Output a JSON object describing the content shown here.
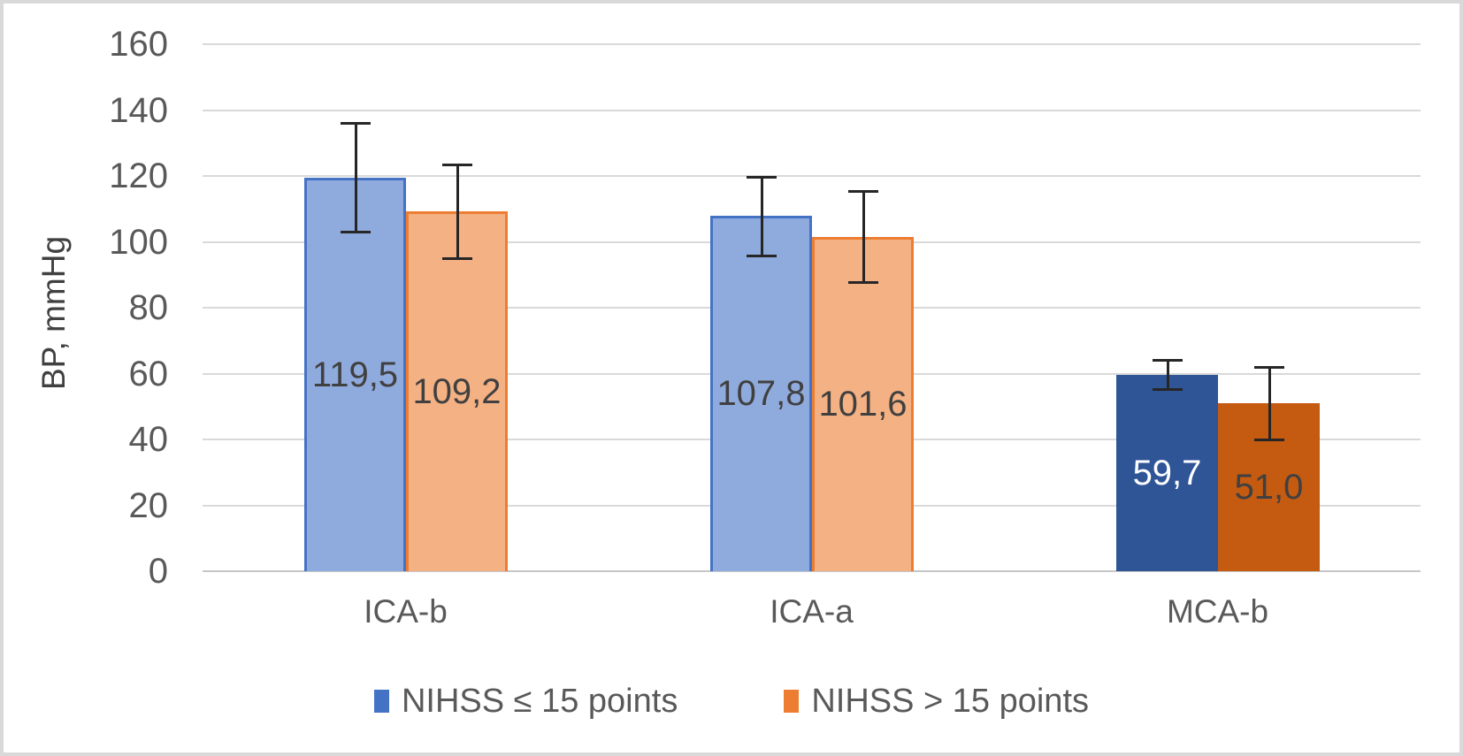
{
  "chart_data": {
    "type": "bar",
    "title": "",
    "ylabel": "BP, mmHg",
    "xlabel": "",
    "categories": [
      "ICA-b",
      "ICA-a",
      "MCA-b"
    ],
    "y_axis": {
      "min": 0,
      "max": 160,
      "step": 20,
      "tick_labels": [
        "0",
        "20",
        "40",
        "60",
        "80",
        "100",
        "120",
        "140",
        "160"
      ]
    },
    "series": [
      {
        "name": "NIHSS ≤ 15 points",
        "values": [
          119.5,
          107.8,
          59.7
        ],
        "value_labels": [
          "119,5",
          "107,8",
          "59,7"
        ],
        "errors": [
          16.5,
          12.0,
          4.5
        ],
        "fills": [
          "#8FAADC",
          "#8FAADC",
          "#2F5597"
        ],
        "borders": [
          "#4472C4",
          "#4472C4",
          "#2F5597"
        ],
        "label_colors": [
          "#404040",
          "#404040",
          "#FFFFFF"
        ],
        "legend_color": "#4472C4"
      },
      {
        "name": "NIHSS > 15 points",
        "values": [
          109.2,
          101.6,
          51.0
        ],
        "value_labels": [
          "109,2",
          "101,6",
          "51,0"
        ],
        "errors": [
          14.2,
          13.9,
          11.0
        ],
        "fills": [
          "#F4B183",
          "#F4B183",
          "#C55A11"
        ],
        "borders": [
          "#ED7D31",
          "#ED7D31",
          "#C55A11"
        ],
        "label_colors": [
          "#404040",
          "#404040",
          "#404040"
        ],
        "legend_color": "#ED7D31"
      }
    ],
    "grid": true,
    "legend_position": "bottom",
    "error_bars": true,
    "colors": {
      "gridline": "#D9D9D9",
      "axis_line": "#C6C6C6",
      "tick_text": "#595959",
      "category_text": "#595959",
      "axis_title_text": "#404040",
      "legend_text": "#595959",
      "error_bar": "#262626",
      "frame": "#D9D9D9",
      "background": "#FFFFFF"
    }
  }
}
